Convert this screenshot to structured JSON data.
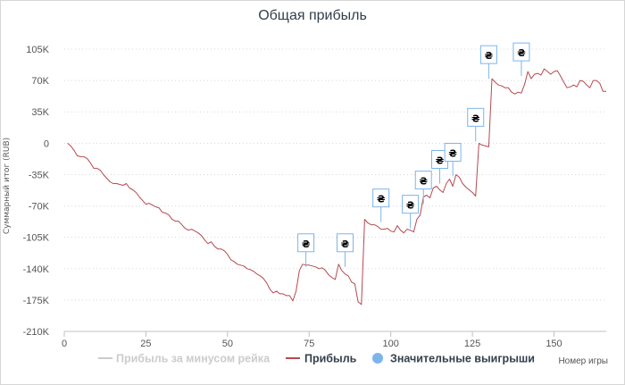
{
  "chart_data": {
    "type": "line",
    "title": "Общая прибыль",
    "xlabel": "Номер игры",
    "ylabel": "Суммарный итог (RUB)",
    "xlim": [
      0,
      166
    ],
    "ylim": [
      -210000,
      115000
    ],
    "x_ticks": [
      0,
      25,
      50,
      75,
      100,
      125,
      150
    ],
    "y_ticks": [
      {
        "value": 105000,
        "label": "105K"
      },
      {
        "value": 70000,
        "label": "70K"
      },
      {
        "value": 35000,
        "label": "35K"
      },
      {
        "value": 0,
        "label": "0"
      },
      {
        "value": -35000,
        "label": "-35K"
      },
      {
        "value": -70000,
        "label": "-70K"
      },
      {
        "value": -105000,
        "label": "-105K"
      },
      {
        "value": -140000,
        "label": "-140K"
      },
      {
        "value": -175000,
        "label": "-175K"
      },
      {
        "value": -210000,
        "label": "-210K"
      }
    ],
    "grid": "horizontal-dotted",
    "legend_position": "bottom",
    "series": [
      {
        "name": "Прибыль за минусом рейка",
        "color": "#cccccc",
        "hidden": true,
        "x": [],
        "y": []
      },
      {
        "name": "Прибыль",
        "color": "#b5494f",
        "x": [
          1,
          2,
          3,
          4,
          5,
          6,
          7,
          8,
          9,
          10,
          11,
          12,
          13,
          14,
          15,
          16,
          17,
          18,
          19,
          20,
          21,
          22,
          23,
          24,
          25,
          26,
          27,
          28,
          29,
          30,
          31,
          32,
          33,
          34,
          35,
          36,
          37,
          38,
          39,
          40,
          41,
          42,
          43,
          44,
          45,
          46,
          47,
          48,
          49,
          50,
          51,
          52,
          53,
          54,
          55,
          56,
          57,
          58,
          59,
          60,
          61,
          62,
          63,
          64,
          65,
          66,
          67,
          68,
          69,
          70,
          71,
          72,
          73,
          74,
          75,
          76,
          77,
          78,
          79,
          80,
          81,
          82,
          83,
          84,
          85,
          86,
          87,
          88,
          89,
          90,
          91,
          92,
          93,
          94,
          95,
          96,
          97,
          98,
          99,
          100,
          101,
          102,
          103,
          104,
          105,
          106,
          107,
          108,
          109,
          110,
          111,
          112,
          113,
          114,
          115,
          116,
          117,
          118,
          119,
          120,
          121,
          122,
          123,
          124,
          125,
          126,
          127,
          128,
          129,
          130,
          131,
          132,
          133,
          134,
          135,
          136,
          137,
          138,
          139,
          140,
          141,
          142,
          143,
          144,
          145,
          146,
          147,
          148,
          149,
          150,
          151,
          152,
          153,
          154,
          155,
          156,
          157,
          158,
          159,
          160,
          161,
          162,
          163,
          164,
          165,
          166
        ],
        "y": [
          0,
          -3000,
          -8000,
          -14000,
          -15000,
          -15000,
          -17000,
          -22000,
          -28000,
          -28000,
          -30000,
          -35000,
          -39000,
          -43000,
          -45000,
          -45000,
          -46000,
          -47000,
          -45000,
          -50000,
          -52000,
          -55000,
          -60000,
          -64000,
          -68000,
          -67000,
          -69000,
          -71000,
          -72000,
          -77000,
          -78000,
          -80000,
          -85000,
          -87000,
          -87000,
          -91000,
          -95000,
          -97000,
          -96000,
          -98000,
          -100000,
          -103000,
          -108000,
          -112000,
          -110000,
          -115000,
          -118000,
          -118000,
          -120000,
          -124000,
          -130000,
          -132000,
          -135000,
          -136000,
          -137000,
          -140000,
          -141000,
          -143000,
          -146000,
          -148000,
          -151000,
          -156000,
          -163000,
          -167000,
          -165000,
          -168000,
          -168000,
          -170000,
          -170000,
          -176000,
          -165000,
          -142000,
          -135000,
          -136000,
          -136000,
          -137000,
          -138000,
          -140000,
          -139000,
          -142000,
          -147000,
          -150000,
          -152000,
          -135000,
          -142000,
          -146000,
          -148000,
          -155000,
          -157000,
          -177000,
          -180000,
          -85000,
          -89000,
          -91000,
          -91000,
          -93000,
          -96000,
          -96000,
          -95000,
          -98000,
          -99000,
          -92000,
          -97000,
          -100000,
          -96000,
          -97000,
          -99000,
          -85000,
          -80000,
          -60000,
          -58000,
          -61000,
          -50000,
          -48000,
          -52000,
          -55000,
          -45000,
          -40000,
          -48000,
          -35000,
          -38000,
          -45000,
          -49000,
          -52000,
          -55000,
          -59000,
          0,
          -2000,
          -3000,
          -4000,
          72000,
          68000,
          65000,
          64000,
          62000,
          62000,
          57000,
          55000,
          57000,
          56000,
          66000,
          80000,
          72000,
          77000,
          78000,
          76000,
          83000,
          80000,
          77000,
          80000,
          81000,
          75000,
          68000,
          62000,
          63000,
          65000,
          63000,
          70000,
          69000,
          65000,
          62000,
          70000,
          70000,
          67000,
          58000,
          58000
        ]
      },
      {
        "name": "Значительные выигрыши",
        "color": "#7cb5ec",
        "type": "flags",
        "flag_symbol": "₴",
        "flags": [
          {
            "x": 74,
            "y": -138000
          },
          {
            "x": 86,
            "y": -138000
          },
          {
            "x": 97,
            "y": -88000
          },
          {
            "x": 106,
            "y": -95000
          },
          {
            "x": 110,
            "y": -68000
          },
          {
            "x": 115,
            "y": -45000
          },
          {
            "x": 119,
            "y": -37000
          },
          {
            "x": 126,
            "y": 2000
          },
          {
            "x": 130,
            "y": 72000
          },
          {
            "x": 140,
            "y": 75000
          }
        ]
      }
    ]
  }
}
